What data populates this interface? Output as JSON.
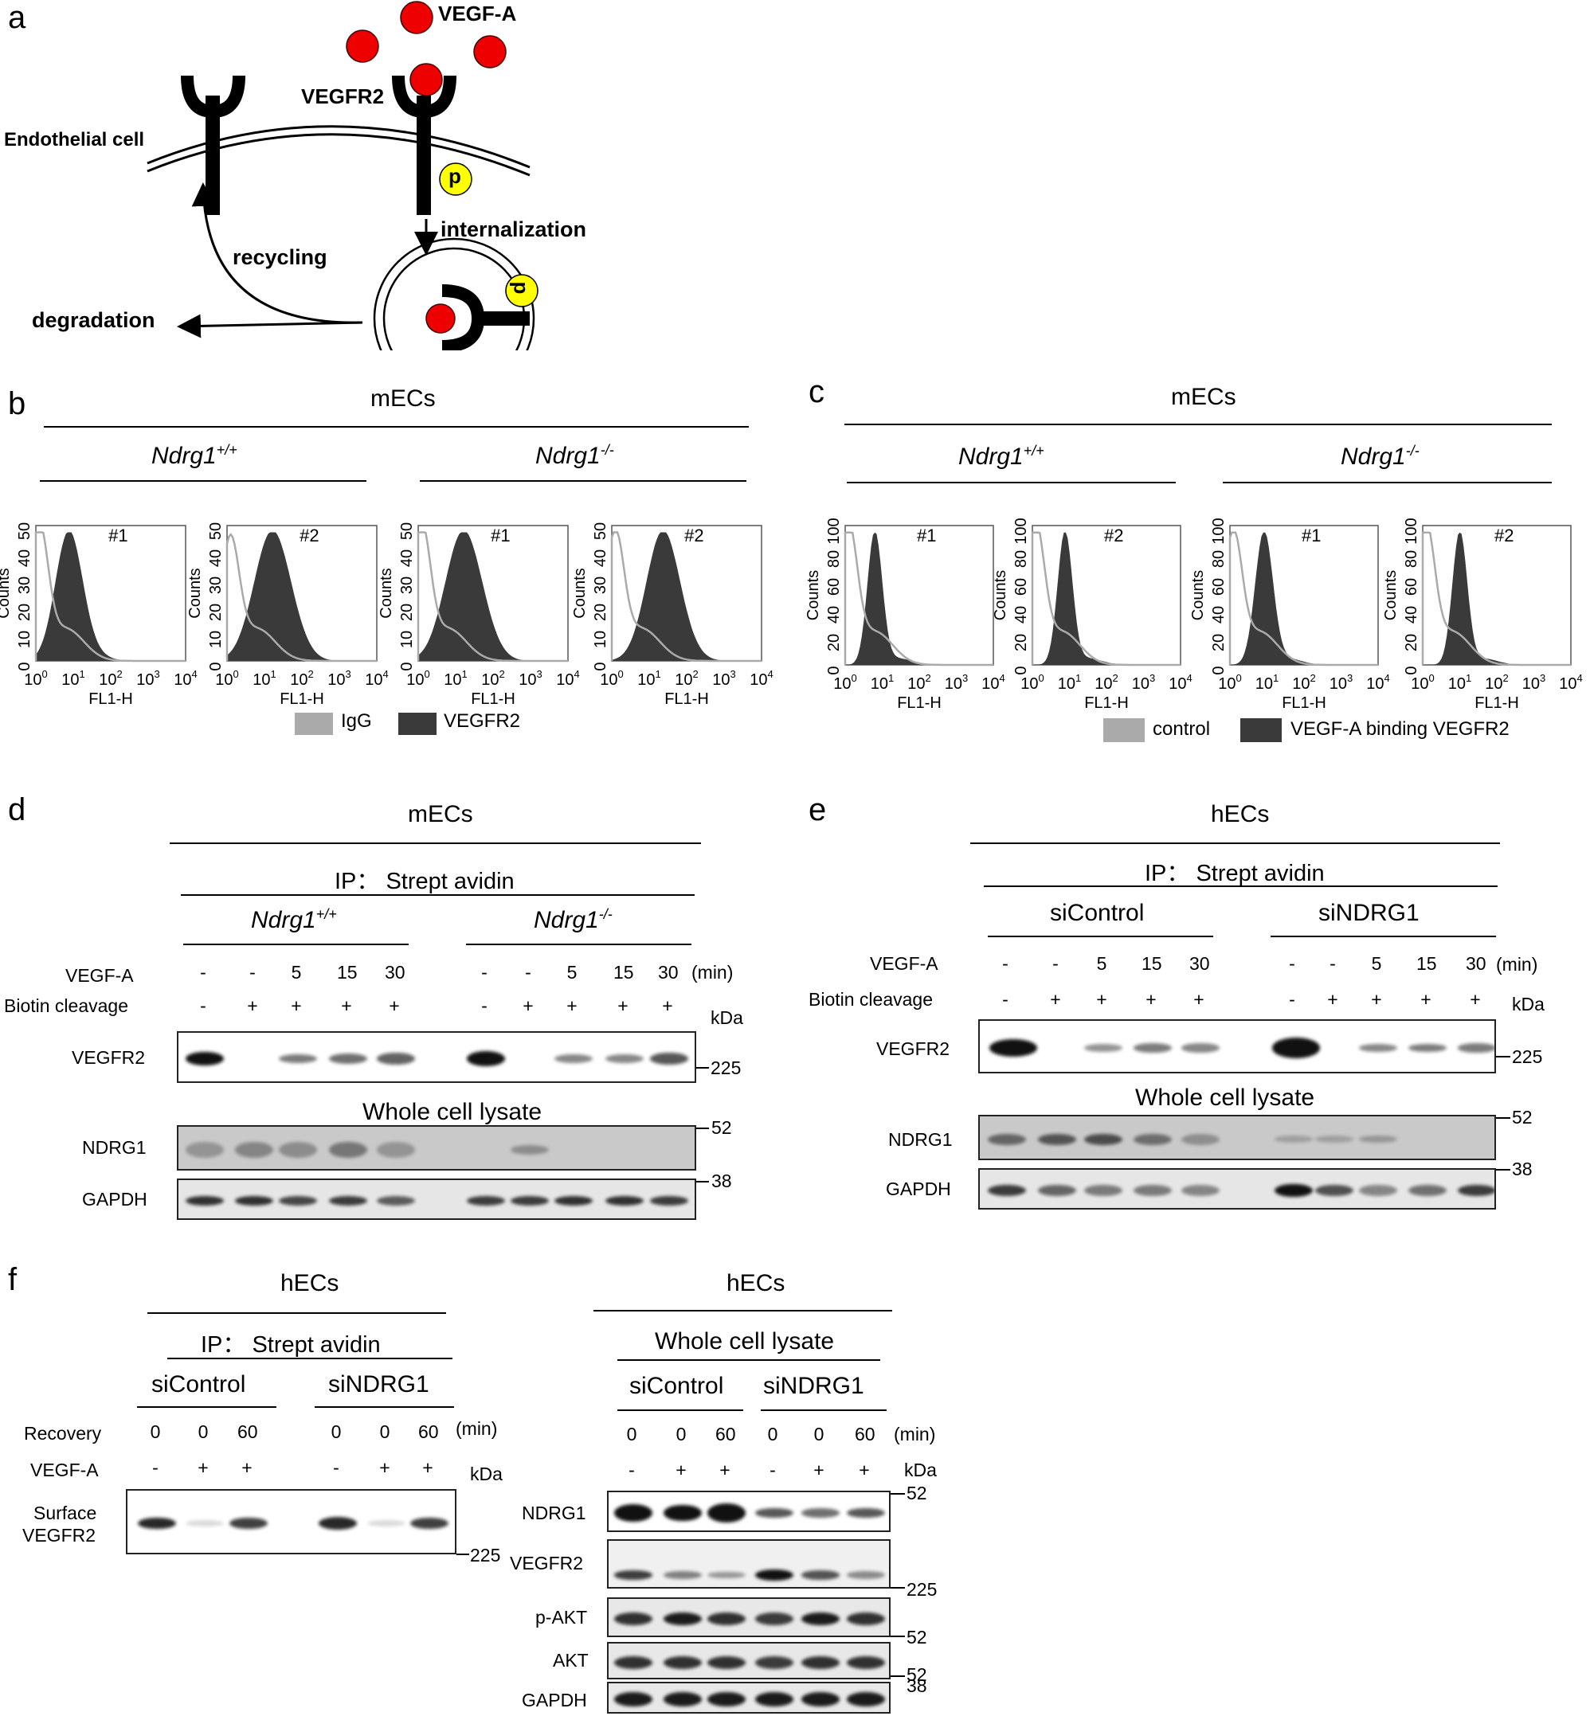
{
  "panels": {
    "a": {
      "label": "a",
      "vegfa": "VEGF-A",
      "vegfr2": "VEGFR2",
      "cell": "Endothelial cell",
      "p": "p",
      "internalization": "internalization",
      "recycling": "recycling",
      "degradation": "degradation"
    },
    "b": {
      "label": "b",
      "title": "mECs",
      "g1": "Ndrg1",
      "g1sup": "+/+",
      "g2": "Ndrg1",
      "g2sup": "-/-",
      "s1": "#1",
      "s2": "#2",
      "s3": "#1",
      "s4": "#2",
      "ylabel": "Counts",
      "xlabel": "FL1-H",
      "yticks": [
        "0",
        "10",
        "20",
        "30",
        "40",
        "50"
      ],
      "xticks": [
        "10",
        "10",
        "10",
        "10",
        "10"
      ],
      "xexp": [
        "0",
        "1",
        "2",
        "3",
        "4"
      ],
      "legend1": "IgG",
      "legend2": "VEGFR2"
    },
    "c": {
      "label": "c",
      "title": "mECs",
      "g1": "Ndrg1",
      "g1sup": "+/+",
      "g2": "Ndrg1",
      "g2sup": "-/-",
      "s1": "#1",
      "s2": "#2",
      "s3": "#1",
      "s4": "#2",
      "ylabel": "Counts",
      "xlabel": "FL1-H",
      "yticks": [
        "0",
        "20",
        "40",
        "60",
        "80",
        "100"
      ],
      "legend1": "control",
      "legend2": "VEGF-A binding VEGFR2"
    },
    "d": {
      "label": "d",
      "title": "mECs",
      "ip": "IP： Strept avidin",
      "g1": "Ndrg1",
      "g1sup": "+/+",
      "g2": "Ndrg1",
      "g2sup": "-/-",
      "row1": "VEGF-A",
      "row2": "Biotin cleavage",
      "min": "(min)",
      "kda": "kDa",
      "vegfa_vals": [
        "-",
        "-",
        "5",
        "15",
        "30",
        "-",
        "-",
        "5",
        "15",
        "30"
      ],
      "biotin_vals": [
        "-",
        "+",
        "+",
        "+",
        "+",
        "-",
        "+",
        "+",
        "+",
        "+"
      ],
      "b1": "VEGFR2",
      "wcl": "Whole cell lysate",
      "b2": "NDRG1",
      "b3": "GAPDH",
      "m225": "225",
      "m52": "52",
      "m38": "38"
    },
    "e": {
      "label": "e",
      "title": "hECs",
      "ip": "IP： Strept avidin",
      "g1": "siControl",
      "g2": "siNDRG1",
      "row1": "VEGF-A",
      "row2": "Biotin cleavage",
      "min": "(min)",
      "kda": "kDa",
      "vegfa_vals": [
        "-",
        "-",
        "5",
        "15",
        "30",
        "-",
        "-",
        "5",
        "15",
        "30"
      ],
      "biotin_vals": [
        "-",
        "+",
        "+",
        "+",
        "+",
        "-",
        "+",
        "+",
        "+",
        "+"
      ],
      "b1": "VEGFR2",
      "wcl": "Whole cell lysate",
      "b2": "NDRG1",
      "b3": "GAPDH",
      "m225": "225",
      "m52": "52",
      "m38": "38"
    },
    "f": {
      "label": "f",
      "left_title": "hECs",
      "ip": "IP： Strept avidin",
      "g1": "siControl",
      "g2": "siNDRG1",
      "row1": "Recovery",
      "row2": "VEGF-A",
      "min": "(min)",
      "kda": "kDa",
      "rec_vals": [
        "0",
        "0",
        "60",
        "0",
        "0",
        "60"
      ],
      "vegfa_vals": [
        "-",
        "+",
        "+",
        "-",
        "+",
        "+"
      ],
      "surface1": "Surface",
      "surface2": "VEGFR2",
      "m225": "225",
      "right_title": "hECs",
      "wcl": "Whole cell lysate",
      "rg1": "siControl",
      "rg2": "siNDRG1",
      "rrec_vals": [
        "0",
        "0",
        "60",
        "0",
        "0",
        "60"
      ],
      "rvegfa_vals": [
        "-",
        "+",
        "+",
        "-",
        "+",
        "+"
      ],
      "rb1": "NDRG1",
      "rb2": "VEGFR2",
      "rb3": "p-AKT",
      "rb4": "AKT",
      "rb5": "GAPDH",
      "rm52a": "52",
      "rm225": "225",
      "rm52b": "52",
      "rm52c": "52",
      "rm38": "38"
    }
  }
}
